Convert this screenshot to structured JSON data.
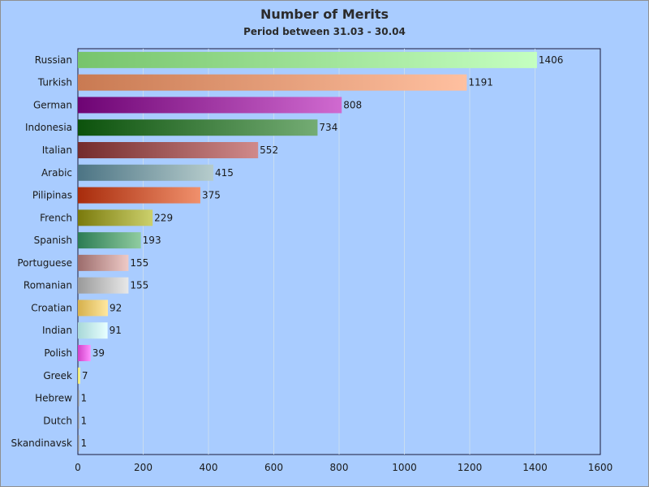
{
  "chart_data": {
    "type": "bar",
    "orientation": "horizontal",
    "title": "Number of Merits",
    "subtitle": "Period between 31.03 - 30.04",
    "xlim": [
      0,
      1600
    ],
    "xticks": [
      0,
      200,
      400,
      600,
      800,
      1000,
      1200,
      1400,
      1600
    ],
    "grid": "vertical",
    "categories": [
      "Russian",
      "Turkish",
      "German",
      "Indonesia",
      "Italian",
      "Arabic",
      "Pilipinas",
      "French",
      "Spanish",
      "Portuguese",
      "Romanian",
      "Croatian",
      "Indian",
      "Polish",
      "Greek",
      "Hebrew",
      "Dutch",
      "Skandinavsk"
    ],
    "values": [
      1406,
      1191,
      808,
      734,
      552,
      415,
      375,
      229,
      193,
      155,
      155,
      92,
      91,
      39,
      7,
      1,
      1,
      1
    ],
    "colors": [
      [
        "#77c46c",
        "#c4ffc0"
      ],
      [
        "#c97a52",
        "#ffc0a0"
      ],
      [
        "#6e0474",
        "#d06ad0"
      ],
      [
        "#0c520c",
        "#74ac74"
      ],
      [
        "#742c2c",
        "#d08a8a"
      ],
      [
        "#4c7484",
        "#b6cccc"
      ],
      [
        "#a82c0c",
        "#f0906c"
      ],
      [
        "#7a7a0c",
        "#ccd06c"
      ],
      [
        "#2c7c54",
        "#90cca0"
      ],
      [
        "#9c6c6c",
        "#eecac6"
      ],
      [
        "#9a9a9a",
        "#e8e8e8"
      ],
      [
        "#d6b04c",
        "#ffe8a0"
      ],
      [
        "#a8d8d8",
        "#e8ffff"
      ],
      [
        "#d040c8",
        "#ff90ff"
      ],
      [
        "#e8e060",
        "#ffff9c"
      ],
      [
        "#6c6c6c",
        "#b0b0b0"
      ],
      [
        "#6c6c6c",
        "#b0b0b0"
      ],
      [
        "#6c6c6c",
        "#b0b0b0"
      ]
    ]
  }
}
